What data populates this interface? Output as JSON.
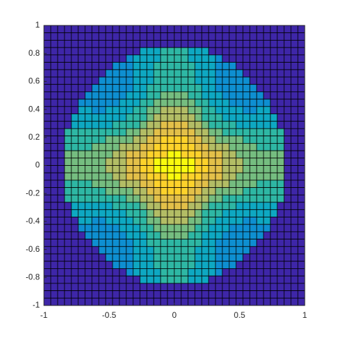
{
  "chart_data": {
    "type": "heatmap",
    "colormap": "parula",
    "cell_edges": true,
    "xlim": [
      -1,
      1
    ],
    "ylim": [
      -1,
      1
    ],
    "xticks": [
      -1,
      -0.5,
      0,
      0.5,
      1
    ],
    "yticks": [
      -1,
      -0.8,
      -0.6,
      -0.4,
      -0.2,
      0,
      0.2,
      0.4,
      0.6,
      0.8,
      1
    ],
    "z": [
      [
        0,
        0,
        0,
        0,
        0,
        0,
        0,
        0,
        0,
        0,
        0,
        0,
        0,
        0,
        0,
        0,
        0,
        0,
        0,
        0,
        0,
        0,
        0,
        0,
        0,
        0,
        0,
        0,
        0,
        0,
        0,
        0,
        0,
        0,
        0,
        0,
        0,
        0
      ],
      [
        0,
        0,
        0,
        0,
        0,
        0,
        0,
        0,
        0,
        0,
        0,
        0,
        0,
        0,
        0,
        0,
        0,
        0,
        0,
        0,
        0,
        0,
        0,
        0,
        0,
        0,
        0,
        0,
        0,
        0,
        0,
        0,
        0,
        0,
        0,
        0,
        0,
        0
      ],
      [
        0,
        0,
        0,
        0,
        0,
        0,
        0,
        0,
        0,
        0,
        0,
        0,
        0,
        0,
        0,
        0,
        0,
        0,
        0,
        0,
        0,
        0,
        0,
        0,
        0,
        0,
        0,
        0,
        0,
        0,
        0,
        0,
        0,
        0,
        0,
        0,
        0,
        0
      ],
      [
        0,
        0,
        0,
        0,
        0,
        0,
        0,
        0,
        0,
        0,
        0,
        0,
        0,
        0,
        4,
        4,
        4,
        5,
        5,
        5,
        5,
        4,
        4,
        4,
        0,
        0,
        0,
        0,
        0,
        0,
        0,
        0,
        0,
        0,
        0,
        0,
        0,
        0
      ],
      [
        0,
        0,
        0,
        0,
        0,
        0,
        0,
        0,
        0,
        0,
        0,
        0,
        3,
        4,
        4,
        4,
        4,
        5,
        5,
        5,
        5,
        4,
        4,
        4,
        4,
        3,
        0,
        0,
        0,
        0,
        0,
        0,
        0,
        0,
        0,
        0,
        0,
        0
      ],
      [
        0,
        0,
        0,
        0,
        0,
        0,
        0,
        0,
        0,
        0,
        3,
        3,
        3,
        4,
        4,
        4,
        5,
        5,
        5,
        5,
        5,
        5,
        4,
        4,
        4,
        3,
        3,
        3,
        0,
        0,
        0,
        0,
        0,
        0,
        0,
        0,
        0,
        0
      ],
      [
        0,
        0,
        0,
        0,
        0,
        0,
        0,
        0,
        0,
        3,
        3,
        3,
        3,
        4,
        4,
        4,
        5,
        5,
        5,
        5,
        5,
        5,
        4,
        4,
        4,
        3,
        3,
        3,
        3,
        0,
        0,
        0,
        0,
        0,
        0,
        0,
        0,
        0
      ],
      [
        0,
        0,
        0,
        0,
        0,
        0,
        0,
        0,
        3,
        3,
        3,
        3,
        3,
        4,
        4,
        4,
        5,
        5,
        5,
        5,
        5,
        5,
        4,
        4,
        4,
        3,
        3,
        3,
        3,
        3,
        0,
        0,
        0,
        0,
        0,
        0,
        0,
        0
      ],
      [
        0,
        0,
        0,
        0,
        0,
        0,
        0,
        3,
        3,
        3,
        3,
        3,
        3,
        4,
        4,
        5,
        5,
        5,
        5,
        5,
        5,
        5,
        5,
        4,
        4,
        3,
        3,
        3,
        3,
        3,
        3,
        0,
        0,
        0,
        0,
        0,
        0,
        0
      ],
      [
        0,
        0,
        0,
        0,
        0,
        0,
        3,
        3,
        3,
        3,
        3,
        3,
        4,
        4,
        4,
        5,
        5,
        6,
        6,
        6,
        6,
        5,
        5,
        4,
        4,
        4,
        3,
        3,
        3,
        3,
        3,
        3,
        0,
        0,
        0,
        0,
        0,
        0
      ],
      [
        0,
        0,
        0,
        0,
        0,
        3,
        3,
        3,
        3,
        3,
        3,
        4,
        4,
        4,
        5,
        5,
        6,
        6,
        6,
        6,
        6,
        6,
        5,
        5,
        4,
        4,
        4,
        3,
        3,
        3,
        3,
        3,
        3,
        0,
        0,
        0,
        0,
        0
      ],
      [
        0,
        0,
        0,
        0,
        0,
        4,
        4,
        3,
        3,
        4,
        4,
        4,
        4,
        5,
        5,
        6,
        6,
        7,
        7,
        7,
        7,
        6,
        6,
        5,
        5,
        4,
        4,
        4,
        4,
        3,
        3,
        4,
        4,
        0,
        0,
        0,
        0,
        0
      ],
      [
        0,
        0,
        0,
        0,
        4,
        4,
        4,
        4,
        4,
        4,
        4,
        4,
        5,
        5,
        5,
        6,
        7,
        7,
        7,
        7,
        7,
        7,
        6,
        5,
        5,
        5,
        4,
        4,
        4,
        4,
        4,
        4,
        4,
        4,
        0,
        0,
        0,
        0
      ],
      [
        0,
        0,
        0,
        0,
        4,
        4,
        4,
        4,
        4,
        4,
        5,
        5,
        5,
        5,
        6,
        7,
        7,
        8,
        8,
        8,
        8,
        7,
        7,
        6,
        5,
        5,
        5,
        5,
        4,
        4,
        4,
        4,
        4,
        4,
        0,
        0,
        0,
        0
      ],
      [
        0,
        0,
        0,
        5,
        5,
        5,
        5,
        5,
        5,
        5,
        5,
        5,
        6,
        6,
        7,
        7,
        8,
        8,
        8,
        8,
        8,
        8,
        7,
        7,
        6,
        6,
        5,
        5,
        5,
        5,
        5,
        5,
        5,
        5,
        5,
        0,
        0,
        0
      ],
      [
        0,
        0,
        0,
        5,
        5,
        5,
        5,
        5,
        5,
        6,
        6,
        6,
        6,
        7,
        7,
        8,
        8,
        9,
        9,
        9,
        9,
        8,
        8,
        7,
        7,
        6,
        6,
        6,
        6,
        5,
        5,
        5,
        5,
        5,
        5,
        0,
        0,
        0
      ],
      [
        0,
        0,
        0,
        5,
        5,
        5,
        5,
        6,
        6,
        6,
        6,
        7,
        7,
        7,
        8,
        8,
        9,
        9,
        9,
        9,
        9,
        9,
        8,
        8,
        7,
        7,
        7,
        6,
        6,
        6,
        6,
        5,
        5,
        5,
        5,
        0,
        0,
        0
      ],
      [
        0,
        0,
        0,
        6,
        6,
        6,
        6,
        6,
        6,
        6,
        7,
        7,
        8,
        8,
        8,
        9,
        9,
        9,
        10,
        10,
        9,
        9,
        9,
        8,
        8,
        8,
        7,
        7,
        6,
        6,
        6,
        6,
        6,
        6,
        6,
        0,
        0,
        0
      ],
      [
        0,
        0,
        0,
        6,
        6,
        6,
        6,
        6,
        6,
        7,
        7,
        7,
        8,
        8,
        9,
        9,
        10,
        10,
        10,
        10,
        10,
        10,
        9,
        9,
        8,
        8,
        7,
        7,
        7,
        6,
        6,
        6,
        6,
        6,
        6,
        0,
        0,
        0
      ],
      [
        0,
        0,
        0,
        6,
        6,
        6,
        6,
        6,
        6,
        7,
        7,
        7,
        8,
        8,
        9,
        9,
        10,
        10,
        10,
        10,
        10,
        10,
        9,
        9,
        8,
        8,
        7,
        7,
        7,
        6,
        6,
        6,
        6,
        6,
        6,
        0,
        0,
        0
      ],
      [
        0,
        0,
        0,
        6,
        6,
        6,
        6,
        6,
        6,
        6,
        7,
        7,
        8,
        8,
        8,
        9,
        9,
        9,
        10,
        10,
        9,
        9,
        9,
        8,
        8,
        8,
        7,
        7,
        6,
        6,
        6,
        6,
        6,
        6,
        6,
        0,
        0,
        0
      ],
      [
        0,
        0,
        0,
        5,
        5,
        5,
        5,
        6,
        6,
        6,
        6,
        7,
        7,
        7,
        8,
        8,
        9,
        9,
        9,
        9,
        9,
        9,
        8,
        8,
        7,
        7,
        7,
        6,
        6,
        6,
        6,
        5,
        5,
        5,
        5,
        0,
        0,
        0
      ],
      [
        0,
        0,
        0,
        5,
        5,
        5,
        5,
        5,
        5,
        6,
        6,
        6,
        6,
        7,
        7,
        8,
        8,
        9,
        9,
        9,
        9,
        8,
        8,
        7,
        7,
        6,
        6,
        6,
        6,
        5,
        5,
        5,
        5,
        5,
        5,
        0,
        0,
        0
      ],
      [
        0,
        0,
        0,
        5,
        5,
        5,
        5,
        5,
        5,
        5,
        5,
        5,
        6,
        6,
        7,
        7,
        8,
        8,
        8,
        8,
        8,
        8,
        7,
        7,
        6,
        6,
        5,
        5,
        5,
        5,
        5,
        5,
        5,
        5,
        5,
        0,
        0,
        0
      ],
      [
        0,
        0,
        0,
        0,
        4,
        4,
        4,
        4,
        4,
        4,
        5,
        5,
        5,
        5,
        6,
        7,
        7,
        8,
        8,
        8,
        8,
        7,
        7,
        6,
        5,
        5,
        5,
        5,
        4,
        4,
        4,
        4,
        4,
        4,
        0,
        0,
        0,
        0
      ],
      [
        0,
        0,
        0,
        0,
        4,
        4,
        4,
        4,
        4,
        4,
        4,
        4,
        5,
        5,
        5,
        6,
        7,
        7,
        7,
        7,
        7,
        7,
        6,
        5,
        5,
        5,
        4,
        4,
        4,
        4,
        4,
        4,
        4,
        4,
        0,
        0,
        0,
        0
      ],
      [
        0,
        0,
        0,
        0,
        0,
        4,
        4,
        3,
        3,
        4,
        4,
        4,
        4,
        5,
        5,
        6,
        6,
        7,
        7,
        7,
        7,
        6,
        6,
        5,
        5,
        4,
        4,
        4,
        4,
        3,
        3,
        4,
        4,
        0,
        0,
        0,
        0,
        0
      ],
      [
        0,
        0,
        0,
        0,
        0,
        3,
        3,
        3,
        3,
        3,
        3,
        4,
        4,
        4,
        5,
        5,
        6,
        6,
        6,
        6,
        6,
        6,
        5,
        5,
        4,
        4,
        4,
        3,
        3,
        3,
        3,
        3,
        3,
        0,
        0,
        0,
        0,
        0
      ],
      [
        0,
        0,
        0,
        0,
        0,
        0,
        3,
        3,
        3,
        3,
        3,
        3,
        4,
        4,
        4,
        5,
        5,
        6,
        6,
        6,
        6,
        5,
        5,
        4,
        4,
        4,
        3,
        3,
        3,
        3,
        3,
        3,
        0,
        0,
        0,
        0,
        0,
        0
      ],
      [
        0,
        0,
        0,
        0,
        0,
        0,
        0,
        3,
        3,
        3,
        3,
        3,
        3,
        4,
        4,
        5,
        5,
        5,
        5,
        5,
        5,
        5,
        5,
        4,
        4,
        3,
        3,
        3,
        3,
        3,
        3,
        0,
        0,
        0,
        0,
        0,
        0,
        0
      ],
      [
        0,
        0,
        0,
        0,
        0,
        0,
        0,
        0,
        3,
        3,
        3,
        3,
        3,
        4,
        4,
        4,
        5,
        5,
        5,
        5,
        5,
        5,
        4,
        4,
        4,
        3,
        3,
        3,
        3,
        3,
        0,
        0,
        0,
        0,
        0,
        0,
        0,
        0
      ],
      [
        0,
        0,
        0,
        0,
        0,
        0,
        0,
        0,
        0,
        3,
        3,
        3,
        3,
        4,
        4,
        4,
        5,
        5,
        5,
        5,
        5,
        5,
        4,
        4,
        4,
        3,
        3,
        3,
        3,
        0,
        0,
        0,
        0,
        0,
        0,
        0,
        0,
        0
      ],
      [
        0,
        0,
        0,
        0,
        0,
        0,
        0,
        0,
        0,
        0,
        3,
        3,
        3,
        4,
        4,
        4,
        5,
        5,
        5,
        5,
        5,
        5,
        4,
        4,
        4,
        3,
        3,
        3,
        0,
        0,
        0,
        0,
        0,
        0,
        0,
        0,
        0,
        0
      ],
      [
        0,
        0,
        0,
        0,
        0,
        0,
        0,
        0,
        0,
        0,
        0,
        0,
        3,
        4,
        4,
        4,
        4,
        5,
        5,
        5,
        5,
        4,
        4,
        4,
        4,
        3,
        0,
        0,
        0,
        0,
        0,
        0,
        0,
        0,
        0,
        0,
        0,
        0
      ],
      [
        0,
        0,
        0,
        0,
        0,
        0,
        0,
        0,
        0,
        0,
        0,
        0,
        0,
        0,
        4,
        4,
        4,
        5,
        5,
        5,
        5,
        4,
        4,
        4,
        0,
        0,
        0,
        0,
        0,
        0,
        0,
        0,
        0,
        0,
        0,
        0,
        0,
        0
      ],
      [
        0,
        0,
        0,
        0,
        0,
        0,
        0,
        0,
        0,
        0,
        0,
        0,
        0,
        0,
        0,
        0,
        0,
        0,
        0,
        0,
        0,
        0,
        0,
        0,
        0,
        0,
        0,
        0,
        0,
        0,
        0,
        0,
        0,
        0,
        0,
        0,
        0,
        0
      ],
      [
        0,
        0,
        0,
        0,
        0,
        0,
        0,
        0,
        0,
        0,
        0,
        0,
        0,
        0,
        0,
        0,
        0,
        0,
        0,
        0,
        0,
        0,
        0,
        0,
        0,
        0,
        0,
        0,
        0,
        0,
        0,
        0,
        0,
        0,
        0,
        0,
        0,
        0
      ],
      [
        0,
        0,
        0,
        0,
        0,
        0,
        0,
        0,
        0,
        0,
        0,
        0,
        0,
        0,
        0,
        0,
        0,
        0,
        0,
        0,
        0,
        0,
        0,
        0,
        0,
        0,
        0,
        0,
        0,
        0,
        0,
        0,
        0,
        0,
        0,
        0,
        0,
        0
      ]
    ]
  }
}
